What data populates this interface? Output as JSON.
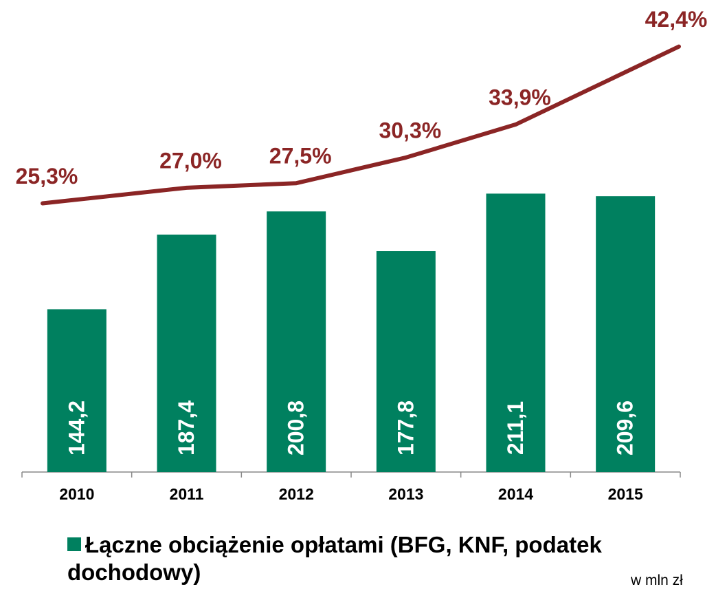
{
  "chart_data": {
    "type": "bar_line",
    "categories": [
      "2010",
      "2011",
      "2012",
      "2013",
      "2014",
      "2015"
    ],
    "series": [
      {
        "name": "Łączne obciążenie opłatami (BFG, KNF, podatek dochodowy)",
        "type": "bar",
        "color": "#00805f",
        "values": [
          144.2,
          187.4,
          200.8,
          177.8,
          211.1,
          209.6
        ],
        "value_labels": [
          "144,2",
          "187,4",
          "200,8",
          "177,8",
          "211,1",
          "209,6"
        ]
      },
      {
        "type": "line",
        "axis": "y2",
        "color": "#8b2525",
        "values": [
          25.3,
          27.0,
          27.5,
          30.3,
          33.9,
          42.4
        ],
        "value_labels": [
          "25,3%",
          "27,0%",
          "27,5%",
          "30,3%",
          "33,9%",
          "42,4%"
        ]
      }
    ],
    "ylim": [
      50,
      310
    ],
    "y2lim": [
      -4,
      45
    ],
    "legend": "bottom-left",
    "note": "w mln zł"
  }
}
